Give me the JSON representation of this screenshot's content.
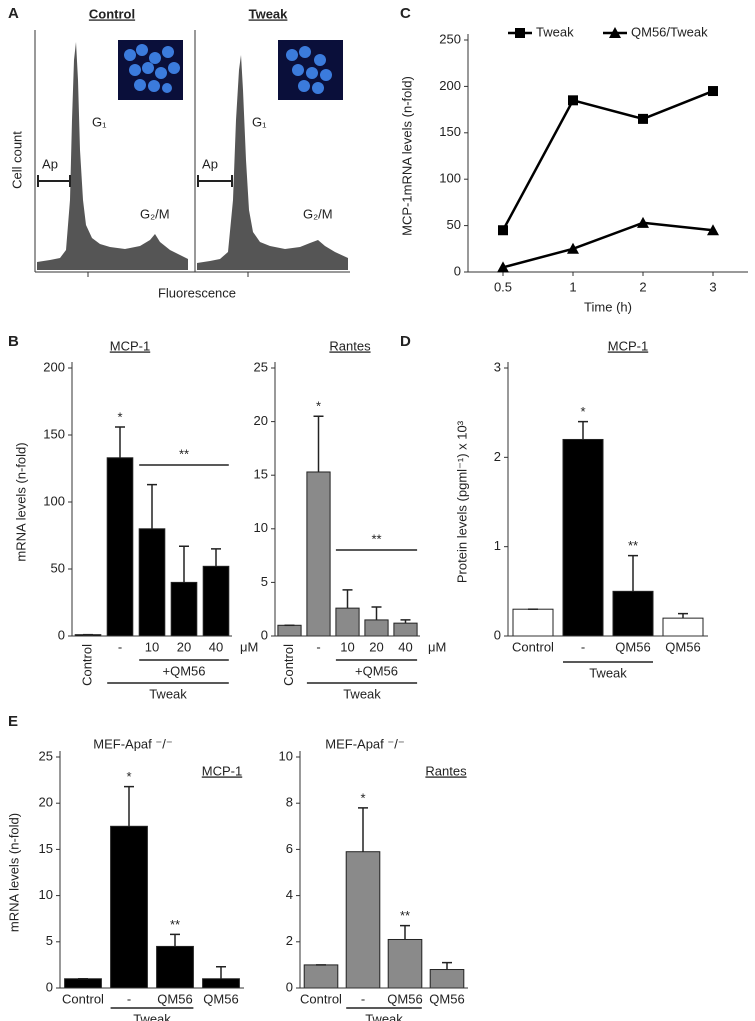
{
  "panel_labels": [
    "A",
    "B",
    "C",
    "D",
    "E"
  ],
  "panel_a": {
    "ylabel": "Cell count",
    "xlabel": "Fluorescence",
    "histograms": [
      {
        "title": "Control",
        "ap": "Ap",
        "g1": "G₁",
        "g2m": "G₂/M"
      },
      {
        "title": "Tweak",
        "ap": "Ap",
        "g1": "G₁",
        "g2m": "G₂/M"
      }
    ]
  },
  "chart_data": [
    {
      "type": "line",
      "ylabel": "MCP-1mRNA levels (n-fold)",
      "xlabel": "Time (h)",
      "categories": [
        "0.5",
        "1",
        "2",
        "3"
      ],
      "series": [
        {
          "name": "Tweak",
          "color": "#000000",
          "marker": "square",
          "values": [
            45,
            185,
            165,
            195
          ]
        },
        {
          "name": "QM56/Tweak",
          "color": "#000000",
          "marker": "triangle",
          "values": [
            5,
            25,
            53,
            45
          ]
        }
      ],
      "ylim": [
        0,
        250
      ],
      "yticks": [
        0,
        50,
        100,
        150,
        200,
        250
      ],
      "legend": "top"
    },
    {
      "type": "bar",
      "title": "MCP-1",
      "ylabel": "mRNA levels (n-fold)",
      "categories": [
        "Control",
        "-",
        "10",
        "20",
        "40"
      ],
      "unit": "μM",
      "values": [
        1,
        133,
        80,
        40,
        52
      ],
      "errors": [
        0,
        23,
        33,
        27,
        13
      ],
      "color": "#000000",
      "significance": [
        null,
        "*",
        null,
        null,
        null
      ],
      "bracket_label": "**",
      "groups": [
        "+QM56",
        "Tweak"
      ],
      "ylim": [
        0,
        200
      ],
      "yticks": [
        0,
        50,
        100,
        150,
        200
      ]
    },
    {
      "type": "bar",
      "title": "Rantes",
      "categories": [
        "Control",
        "-",
        "10",
        "20",
        "40"
      ],
      "unit": "μM",
      "values": [
        1,
        15.3,
        2.6,
        1.5,
        1.2
      ],
      "errors": [
        0,
        5.2,
        1.7,
        1.2,
        0.3
      ],
      "color": "#8a8a8a",
      "significance": [
        null,
        "*",
        null,
        null,
        null
      ],
      "bracket_label": "**",
      "groups": [
        "+QM56",
        "Tweak"
      ],
      "ylim": [
        0,
        25
      ],
      "yticks": [
        0,
        5,
        10,
        15,
        20,
        25
      ]
    },
    {
      "type": "bar",
      "title": "MCP-1",
      "ylabel": "Protein levels (pgml⁻¹) x 10³",
      "categories": [
        "Control",
        "-",
        "QM56",
        "QM56"
      ],
      "values": [
        0.3,
        2.2,
        0.5,
        0.2
      ],
      "errors": [
        0,
        0.2,
        0.4,
        0.05
      ],
      "colors": [
        "#ffffff",
        "#000000",
        "#000000",
        "#ffffff"
      ],
      "significance": [
        null,
        "*",
        "**",
        null
      ],
      "groups": [
        "Tweak"
      ],
      "ylim": [
        0,
        3
      ],
      "yticks": [
        0,
        1,
        2,
        3
      ]
    },
    {
      "type": "bar",
      "title": "MEF-Apaf ⁻/⁻",
      "subtitle": "MCP-1",
      "ylabel": "mRNA levels (n-fold)",
      "categories": [
        "Control",
        "-",
        "QM56",
        "QM56"
      ],
      "values": [
        1,
        17.5,
        4.5,
        1
      ],
      "errors": [
        0,
        4.3,
        1.3,
        1.3
      ],
      "color": "#000000",
      "significance": [
        null,
        "*",
        "**",
        null
      ],
      "groups": [
        "Tweak"
      ],
      "ylim": [
        0,
        25
      ],
      "yticks": [
        0,
        5,
        10,
        15,
        20,
        25
      ]
    },
    {
      "type": "bar",
      "title": "MEF-Apaf ⁻/⁻",
      "subtitle": "Rantes",
      "categories": [
        "Control",
        "-",
        "QM56",
        "QM56"
      ],
      "values": [
        1,
        5.9,
        2.1,
        0.8
      ],
      "errors": [
        0,
        1.9,
        0.6,
        0.3
      ],
      "color": "#8a8a8a",
      "significance": [
        null,
        "*",
        "**",
        null
      ],
      "groups": [
        "Tweak"
      ],
      "ylim": [
        0,
        10
      ],
      "yticks": [
        0,
        2,
        4,
        6,
        8,
        10
      ]
    }
  ]
}
